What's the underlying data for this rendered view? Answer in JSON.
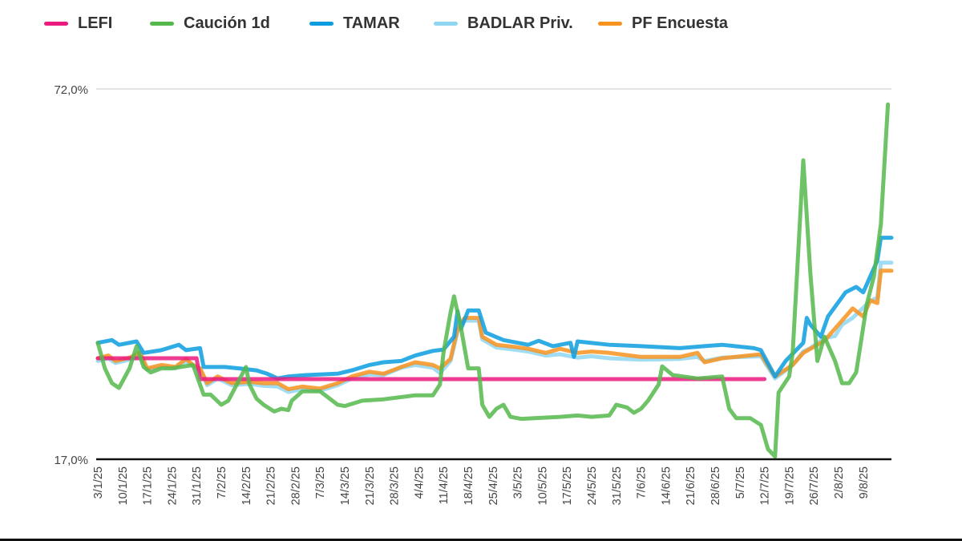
{
  "chart_data": {
    "type": "line",
    "title": "",
    "xlabel": "",
    "ylabel": "",
    "x_unit": "days since 3/1/25",
    "ylim": [
      17,
      72
    ],
    "y_ticks": [
      "72,0%",
      "17,0%"
    ],
    "y_tick_values": [
      72,
      17
    ],
    "x_tick_labels": [
      "3/1/25",
      "10/1/25",
      "17/1/25",
      "24/1/25",
      "31/1/25",
      "7/2/25",
      "14/2/25",
      "21/2/25",
      "28/2/25",
      "7/3/25",
      "14/3/25",
      "21/3/25",
      "28/3/25",
      "4/4/25",
      "11/4/25",
      "18/4/25",
      "25/4/25",
      "3/5/25",
      "10/5/25",
      "17/5/25",
      "24/5/25",
      "31/5/25",
      "7/6/25",
      "14/6/25",
      "21/6/25",
      "28/6/25",
      "5/7/25",
      "12/7/25",
      "19/7/25",
      "26/7/25",
      "2/8/25",
      "9/8/25"
    ],
    "legend_position": "top",
    "grid": true,
    "series": [
      {
        "name": "LEFI",
        "color": "#ea1a7f",
        "x": [
          0,
          28,
          29,
          189
        ],
        "y": [
          32.0,
          32.0,
          28.9,
          28.9
        ]
      },
      {
        "name": "Caución 1d",
        "color": "#55b84c",
        "x": [
          0,
          2,
          4,
          6,
          9,
          11,
          13,
          15,
          18,
          21,
          27,
          30,
          32,
          35,
          37,
          40,
          42,
          43,
          45,
          47,
          50,
          52,
          54,
          55,
          58,
          63,
          65,
          68,
          70,
          75,
          81,
          90,
          95,
          97,
          98,
          100,
          101,
          103,
          105,
          108,
          109,
          111,
          113,
          115,
          117,
          120,
          131,
          136,
          140,
          145,
          147,
          150,
          152,
          154,
          156,
          159,
          160,
          163,
          170,
          177,
          179,
          181,
          185,
          188,
          190,
          192,
          193,
          196,
          197,
          200,
          202,
          204,
          206,
          209,
          211,
          213,
          215,
          218,
          220,
          222,
          224
        ],
        "y": [
          34.3,
          30.5,
          28.3,
          27.6,
          30.5,
          33.8,
          30.7,
          29.9,
          30.5,
          30.5,
          31.0,
          26.6,
          26.6,
          25.1,
          25.7,
          28.7,
          30.7,
          28.1,
          26.0,
          25.1,
          24.1,
          24.5,
          24.3,
          25.7,
          27.1,
          27.1,
          26.3,
          25.1,
          24.9,
          25.7,
          25.9,
          26.5,
          26.5,
          28.1,
          32.8,
          38.8,
          41.2,
          36.4,
          30.5,
          30.5,
          25.1,
          23.3,
          24.5,
          25.1,
          23.3,
          23.0,
          23.3,
          23.5,
          23.3,
          23.5,
          25.1,
          24.7,
          23.9,
          24.5,
          25.7,
          28.1,
          30.8,
          29.5,
          29.0,
          29.3,
          24.5,
          23.1,
          23.1,
          22.1,
          18.5,
          17.4,
          26.9,
          29.3,
          32.8,
          61.4,
          44.7,
          31.6,
          35.2,
          31.6,
          28.3,
          28.3,
          29.9,
          40.0,
          44.1,
          51.9,
          69.7
        ]
      },
      {
        "name": "TAMAR",
        "color": "#0c9de0",
        "x": [
          0,
          4,
          6,
          11,
          13,
          18,
          23,
          25,
          29,
          30,
          36,
          40,
          45,
          48,
          51,
          54,
          59,
          68,
          72,
          77,
          81,
          86,
          90,
          95,
          98,
          101,
          102,
          103,
          105,
          108,
          110,
          115,
          122,
          125,
          129,
          134,
          135,
          136,
          145,
          154,
          165,
          172,
          177,
          186,
          188,
          192,
          195,
          200,
          201,
          202,
          205,
          207,
          212,
          215,
          217,
          221,
          222,
          225
        ],
        "y": [
          34.3,
          34.7,
          34.0,
          34.5,
          32.8,
          33.2,
          34.0,
          33.2,
          33.5,
          30.7,
          30.7,
          30.5,
          30.2,
          29.7,
          29.0,
          29.3,
          29.5,
          29.7,
          30.2,
          31.0,
          31.4,
          31.6,
          32.4,
          33.1,
          33.3,
          35.2,
          39.0,
          36.4,
          39.1,
          39.1,
          35.8,
          34.7,
          34.0,
          34.6,
          33.8,
          34.3,
          32.2,
          34.5,
          34.0,
          33.8,
          33.5,
          33.8,
          34.0,
          33.5,
          33.2,
          29.3,
          31.6,
          34.3,
          38.0,
          37.0,
          35.2,
          38.2,
          41.8,
          42.6,
          41.8,
          46.5,
          49.9,
          49.9
        ]
      },
      {
        "name": "BADLAR Priv.",
        "color": "#8fd6f2",
        "x": [
          0,
          3,
          5,
          9,
          12,
          14,
          18,
          22,
          25,
          27,
          29,
          31,
          34,
          38,
          43,
          47,
          51,
          54,
          58,
          63,
          68,
          72,
          77,
          81,
          86,
          90,
          95,
          97,
          100,
          102,
          104,
          108,
          109,
          113,
          118,
          122,
          127,
          131,
          136,
          140,
          145,
          154,
          165,
          170,
          172,
          177,
          188,
          192,
          197,
          200,
          202,
          206,
          209,
          211,
          214,
          217,
          219,
          221,
          222,
          225
        ],
        "y": [
          31.6,
          32.0,
          31.3,
          31.8,
          32.5,
          30.3,
          30.7,
          30.5,
          31.6,
          30.8,
          30.3,
          28.0,
          29.0,
          28.0,
          28.2,
          27.9,
          27.8,
          27.0,
          27.4,
          27.2,
          28.0,
          29.0,
          29.6,
          29.5,
          30.6,
          31.0,
          30.6,
          29.8,
          31.6,
          36.0,
          37.6,
          37.6,
          34.8,
          33.6,
          33.3,
          33.0,
          32.4,
          32.6,
          32.1,
          32.3,
          32.0,
          31.8,
          31.9,
          32.2,
          31.6,
          32.1,
          32.3,
          29.0,
          31.0,
          33.0,
          33.5,
          35.0,
          35.3,
          37.0,
          38.0,
          39.5,
          40.5,
          41.0,
          46.2,
          46.2
        ]
      },
      {
        "name": "PF Encuesta",
        "color": "#f7931e",
        "x": [
          0,
          3,
          5,
          9,
          12,
          14,
          18,
          22,
          25,
          27,
          29,
          31,
          34,
          38,
          43,
          47,
          51,
          54,
          58,
          63,
          68,
          72,
          77,
          81,
          86,
          90,
          95,
          97,
          100,
          102,
          104,
          108,
          109,
          113,
          118,
          122,
          127,
          131,
          136,
          140,
          145,
          154,
          165,
          170,
          172,
          177,
          188,
          192,
          197,
          200,
          202,
          206,
          209,
          211,
          214,
          217,
          219,
          221,
          222,
          225
        ],
        "y": [
          32.0,
          32.4,
          31.6,
          32.1,
          32.8,
          30.5,
          31.0,
          30.7,
          31.9,
          31.0,
          30.5,
          28.3,
          29.3,
          28.3,
          28.5,
          28.3,
          28.3,
          27.4,
          27.8,
          27.5,
          28.3,
          29.3,
          30.0,
          29.7,
          30.7,
          31.4,
          31.0,
          30.5,
          31.9,
          36.4,
          38.0,
          38.0,
          35.2,
          34.0,
          33.7,
          33.4,
          32.8,
          33.4,
          32.8,
          33.0,
          32.8,
          32.2,
          32.2,
          32.8,
          31.4,
          32.0,
          32.6,
          29.3,
          31.0,
          32.8,
          33.4,
          34.6,
          36.4,
          37.6,
          39.4,
          38.2,
          40.6,
          40.2,
          45.0,
          45.0
        ]
      }
    ]
  }
}
